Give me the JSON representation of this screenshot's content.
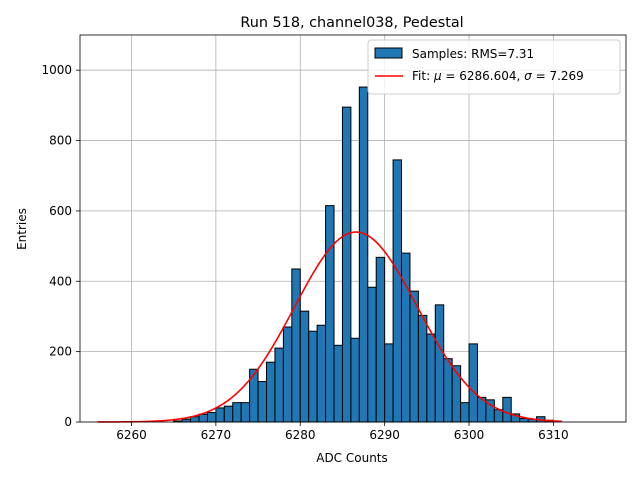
{
  "chart_data": {
    "type": "bar",
    "title": "Run 518, channel038, Pedestal",
    "xlabel": "ADC Counts",
    "ylabel": "Entries",
    "xlim": [
      6253.9,
      6318.6
    ],
    "ylim": [
      0,
      1100
    ],
    "grid": true,
    "legend_position": "top-right",
    "xticks": [
      6260,
      6270,
      6280,
      6290,
      6300,
      6310
    ],
    "yticks": [
      0,
      200,
      400,
      600,
      800,
      1000
    ],
    "colors": {
      "bar_fill": "#1f77b4",
      "bar_edge": "#000000",
      "fit_line": "#ff0000",
      "grid": "#b0b0b0"
    },
    "series": [
      {
        "name": "Samples: RMS=7.31",
        "kind": "histogram",
        "bin_width": 1,
        "bins": [
          [
            6265,
            3
          ],
          [
            6266,
            8
          ],
          [
            6267,
            15
          ],
          [
            6268,
            22
          ],
          [
            6269,
            27
          ],
          [
            6270,
            40
          ],
          [
            6271,
            45
          ],
          [
            6272,
            55
          ],
          [
            6273,
            55
          ],
          [
            6274,
            150
          ],
          [
            6275,
            115
          ],
          [
            6276,
            170
          ],
          [
            6277,
            210
          ],
          [
            6278,
            270
          ],
          [
            6279,
            435
          ],
          [
            6280,
            315
          ],
          [
            6281,
            258
          ],
          [
            6282,
            275
          ],
          [
            6283,
            615
          ],
          [
            6284,
            218
          ],
          [
            6285,
            895
          ],
          [
            6286,
            238
          ],
          [
            6287,
            952
          ],
          [
            6288,
            383
          ],
          [
            6289,
            468
          ],
          [
            6290,
            222
          ],
          [
            6291,
            745
          ],
          [
            6292,
            480
          ],
          [
            6293,
            372
          ],
          [
            6294,
            303
          ],
          [
            6295,
            250
          ],
          [
            6296,
            333
          ],
          [
            6297,
            180
          ],
          [
            6298,
            160
          ],
          [
            6299,
            55
          ],
          [
            6300,
            222
          ],
          [
            6301,
            70
          ],
          [
            6302,
            63
          ],
          [
            6303,
            35
          ],
          [
            6304,
            70
          ],
          [
            6305,
            23
          ],
          [
            6306,
            10
          ],
          [
            6307,
            8
          ],
          [
            6308,
            15
          ],
          [
            6309,
            5
          ]
        ]
      },
      {
        "name": "Fit: μ = 6286.604, σ = 7.269",
        "kind": "gaussian_fit",
        "mu": 6286.604,
        "sigma": 7.269,
        "amplitude": 540,
        "x_range": [
          6256,
          6311
        ]
      }
    ]
  }
}
